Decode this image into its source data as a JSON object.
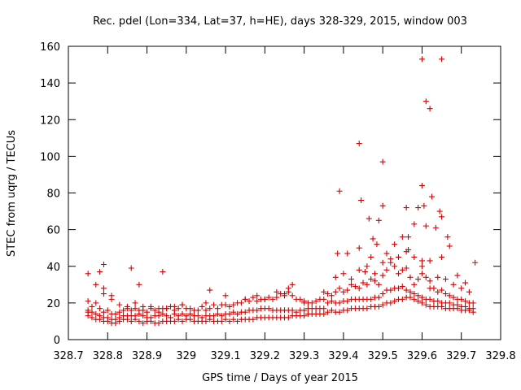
{
  "chart_data": {
    "type": "scatter",
    "title": "Rec. pdel (Lon=334, Lat=37, h=HE), days 328-329, 2015, window 003",
    "xlabel": "GPS time / Days of year 2015",
    "ylabel": "STEC from uqrg / TECUs",
    "xlim": [
      328.7,
      329.8
    ],
    "ylim": [
      0,
      160
    ],
    "x_ticks": [
      328.7,
      328.8,
      328.9,
      329.0,
      329.1,
      329.2,
      329.3,
      329.4,
      329.5,
      329.6,
      329.7,
      329.8
    ],
    "x_tick_labels": [
      "328.7",
      "328.8",
      "328.9",
      "329",
      "329.1",
      "329.2",
      "329.3",
      "329.4",
      "329.5",
      "329.6",
      "329.7",
      "329.8"
    ],
    "y_ticks": [
      0,
      20,
      40,
      60,
      80,
      100,
      120,
      140,
      160
    ],
    "y_tick_labels": [
      "0",
      "20",
      "40",
      "60",
      "80",
      "100",
      "120",
      "140",
      "160"
    ],
    "grid": false,
    "marker": "+",
    "color": "#d40000",
    "series": [
      {
        "x": [
          328.75,
          328.76,
          328.77,
          328.78,
          328.79,
          328.8,
          328.81,
          328.82,
          328.83,
          328.84,
          328.85,
          328.86,
          328.87,
          328.88,
          328.89,
          328.9,
          328.91,
          328.92,
          328.93,
          328.94,
          328.95,
          328.96,
          328.97,
          328.98,
          328.99,
          328.75,
          328.76,
          328.77,
          328.78,
          328.79,
          328.8,
          328.81,
          328.82,
          328.83,
          328.84,
          328.85,
          328.86,
          328.87,
          328.88,
          328.89,
          328.9,
          328.91,
          328.92,
          328.93,
          328.94,
          328.95,
          328.96,
          328.97,
          328.98,
          328.99,
          328.75,
          328.76,
          328.77,
          328.78,
          328.79,
          328.8,
          328.81,
          328.82,
          328.83,
          328.84,
          328.85,
          328.86,
          328.87,
          328.88,
          328.89,
          328.9,
          328.91,
          328.92,
          328.93,
          328.94,
          328.95,
          328.96,
          328.97,
          328.98,
          328.99,
          328.75,
          328.77,
          328.79,
          328.81,
          328.83,
          328.85,
          328.87,
          328.89,
          328.91,
          328.93,
          328.95,
          328.97,
          328.99,
          328.75,
          328.79,
          328.81,
          328.86,
          328.88,
          328.94,
          328.79,
          328.78,
          329.0,
          329.01,
          329.02,
          329.03,
          329.04,
          329.05,
          329.06,
          329.07,
          329.08,
          329.09,
          329.1,
          329.11,
          329.12,
          329.13,
          329.14,
          329.15,
          329.16,
          329.17,
          329.18,
          329.19,
          329.2,
          329.21,
          329.22,
          329.23,
          329.24,
          329.25,
          329.26,
          329.27,
          329.28,
          329.29,
          329.3,
          329.31,
          329.32,
          329.33,
          329.34,
          329.35,
          329.0,
          329.01,
          329.02,
          329.03,
          329.04,
          329.05,
          329.06,
          329.07,
          329.08,
          329.09,
          329.1,
          329.11,
          329.12,
          329.13,
          329.14,
          329.15,
          329.16,
          329.17,
          329.18,
          329.19,
          329.2,
          329.21,
          329.22,
          329.23,
          329.24,
          329.25,
          329.26,
          329.27,
          329.28,
          329.29,
          329.3,
          329.31,
          329.32,
          329.33,
          329.34,
          329.35,
          329.0,
          329.01,
          329.02,
          329.03,
          329.04,
          329.05,
          329.06,
          329.07,
          329.08,
          329.09,
          329.1,
          329.11,
          329.12,
          329.13,
          329.14,
          329.15,
          329.16,
          329.17,
          329.18,
          329.19,
          329.2,
          329.21,
          329.22,
          329.23,
          329.24,
          329.25,
          329.26,
          329.27,
          329.28,
          329.29,
          329.3,
          329.31,
          329.32,
          329.33,
          329.34,
          329.35,
          329.05,
          329.1,
          329.15,
          329.2,
          329.25,
          329.3,
          329.35,
          329.06,
          329.18,
          329.26,
          329.27,
          329.23,
          329.36,
          329.37,
          329.38,
          329.39,
          329.4,
          329.41,
          329.42,
          329.43,
          329.44,
          329.45,
          329.46,
          329.47,
          329.48,
          329.49,
          329.5,
          329.51,
          329.52,
          329.53,
          329.54,
          329.55,
          329.56,
          329.57,
          329.58,
          329.59,
          329.6,
          329.61,
          329.62,
          329.63,
          329.64,
          329.65,
          329.66,
          329.67,
          329.68,
          329.69,
          329.7,
          329.71,
          329.72,
          329.73,
          329.36,
          329.37,
          329.38,
          329.39,
          329.4,
          329.41,
          329.42,
          329.43,
          329.44,
          329.45,
          329.46,
          329.47,
          329.48,
          329.49,
          329.5,
          329.51,
          329.52,
          329.53,
          329.54,
          329.55,
          329.56,
          329.57,
          329.58,
          329.59,
          329.6,
          329.61,
          329.62,
          329.63,
          329.64,
          329.65,
          329.66,
          329.67,
          329.68,
          329.69,
          329.7,
          329.71,
          329.72,
          329.73,
          329.36,
          329.37,
          329.38,
          329.39,
          329.4,
          329.41,
          329.42,
          329.43,
          329.44,
          329.45,
          329.46,
          329.47,
          329.48,
          329.49,
          329.5,
          329.51,
          329.52,
          329.53,
          329.54,
          329.55,
          329.56,
          329.57,
          329.58,
          329.59,
          329.6,
          329.61,
          329.62,
          329.63,
          329.64,
          329.65,
          329.66,
          329.67,
          329.68,
          329.69,
          329.7,
          329.71,
          329.72,
          329.73,
          329.38,
          329.4,
          329.42,
          329.44,
          329.46,
          329.48,
          329.5,
          329.52,
          329.54,
          329.56,
          329.58,
          329.6,
          329.62,
          329.64,
          329.66,
          329.68,
          329.7,
          329.72,
          329.385,
          329.41,
          329.44,
          329.455,
          329.47,
          329.485,
          329.5,
          329.51,
          329.53,
          329.55,
          329.565,
          329.58,
          329.6,
          329.61,
          329.62,
          329.635,
          329.65,
          329.67,
          329.69,
          329.71,
          329.735,
          329.39,
          329.445,
          329.44,
          329.465,
          329.475,
          329.49,
          329.5,
          329.56,
          329.565,
          329.59,
          329.6,
          329.605,
          329.625,
          329.645,
          329.65,
          329.665,
          329.6,
          329.61,
          329.62,
          329.65
        ],
        "y": [
          13,
          12,
          11,
          11,
          10,
          10,
          9,
          9,
          10,
          11,
          11,
          10,
          11,
          10,
          9,
          10,
          10,
          9,
          9,
          10,
          10,
          10,
          10,
          11,
          10,
          16,
          15,
          14,
          13,
          12,
          12,
          11,
          11,
          12,
          13,
          13,
          13,
          13,
          14,
          13,
          12,
          12,
          13,
          13,
          14,
          13,
          12,
          14,
          13,
          14,
          21,
          18,
          20,
          17,
          15,
          16,
          14,
          14,
          15,
          16,
          17,
          16,
          17,
          16,
          16,
          15,
          17,
          16,
          15,
          17,
          17,
          18,
          16,
          17,
          19,
          36,
          30,
          25,
          24,
          19,
          18,
          20,
          18,
          18,
          17,
          17,
          18,
          19,
          15,
          28,
          22,
          39,
          30,
          37,
          41,
          37,
          11,
          11,
          10,
          10,
          10,
          10,
          11,
          10,
          10,
          10,
          11,
          10,
          11,
          10,
          11,
          11,
          11,
          11,
          12,
          12,
          12,
          12,
          12,
          12,
          12,
          12,
          12,
          13,
          13,
          13,
          13,
          14,
          14,
          14,
          14,
          14,
          13,
          14,
          13,
          13,
          12,
          13,
          13,
          13,
          14,
          13,
          14,
          14,
          15,
          14,
          15,
          15,
          16,
          16,
          16,
          17,
          17,
          17,
          16,
          16,
          16,
          16,
          16,
          16,
          15,
          16,
          16,
          17,
          17,
          17,
          17,
          17,
          17,
          17,
          16,
          16,
          18,
          16,
          17,
          19,
          17,
          19,
          19,
          18,
          19,
          20,
          20,
          22,
          21,
          23,
          21,
          22,
          22,
          23,
          22,
          23,
          25,
          25,
          26,
          24,
          22,
          22,
          21,
          20,
          20,
          21,
          22,
          22,
          20,
          24,
          22,
          22,
          24,
          20,
          26,
          27,
          24,
          28,
          30,
          26,
          15,
          16,
          15,
          15,
          16,
          16,
          17,
          17,
          17,
          17,
          17,
          18,
          18,
          18,
          19,
          20,
          20,
          21,
          22,
          22,
          23,
          23,
          22,
          21,
          20,
          19,
          18,
          18,
          18,
          18,
          17,
          17,
          17,
          17,
          16,
          16,
          16,
          15,
          20,
          21,
          20,
          20,
          21,
          21,
          22,
          22,
          22,
          22,
          22,
          22,
          23,
          23,
          25,
          27,
          27,
          28,
          28,
          29,
          27,
          26,
          25,
          24,
          23,
          22,
          22,
          21,
          21,
          20,
          20,
          20,
          19,
          19,
          18,
          18,
          17,
          17,
          25,
          24,
          26,
          28,
          26,
          27,
          30,
          29,
          28,
          31,
          30,
          33,
          32,
          30,
          35,
          38,
          42,
          40,
          36,
          38,
          39,
          34,
          30,
          33,
          36,
          34,
          32,
          28,
          26,
          27,
          25,
          24,
          23,
          22,
          22,
          21,
          20,
          20,
          34,
          36,
          33,
          38,
          40,
          36,
          42,
          44,
          45,
          48,
          45,
          40,
          43,
          34,
          33,
          30,
          28,
          26,
          47,
          47,
          50,
          37,
          45,
          52,
          73,
          47,
          52,
          56,
          49,
          63,
          43,
          62,
          28,
          61,
          45,
          51,
          35,
          31,
          42,
          81,
          76,
          107,
          66,
          55,
          65,
          97,
          72,
          56,
          72,
          84,
          73,
          78,
          70,
          67,
          56,
          153,
          130,
          126,
          153
        ]
      }
    ]
  }
}
